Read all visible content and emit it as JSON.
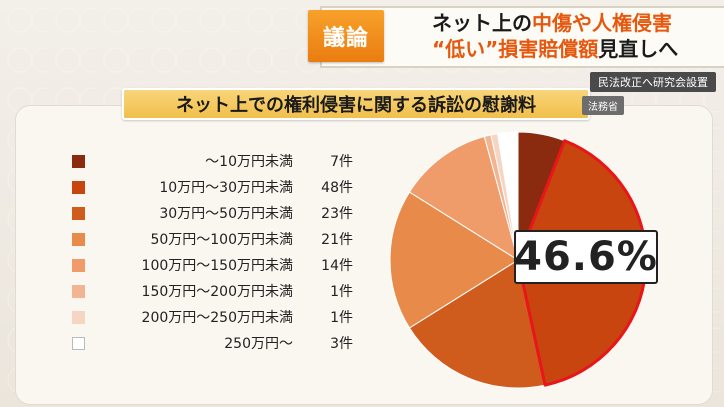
{
  "headline": {
    "badge": "議論",
    "line1_plain": "ネット上の",
    "line1_hl": "中傷や人権侵害",
    "line2_hl": "“低い”損害賠償額",
    "line2_plain": "見直しへ"
  },
  "sub_caption": "民法改正へ研究会設置",
  "chart": {
    "title": "ネット上での権利侵害に関する訴訟の慰謝料",
    "source": "法務省",
    "highlight_label": "46.6%"
  },
  "chart_data": {
    "type": "pie",
    "title": "ネット上での権利侵害に関する訴訟の慰謝料",
    "categories": [
      "〜10万円未満",
      "10万円〜30万円未満",
      "30万円〜50万円未満",
      "50万円〜100万円未満",
      "100万円〜150万円未満",
      "150万円〜200万円未満",
      "200万円〜250万円未満",
      "250万円〜"
    ],
    "counts": [
      "7件",
      "48件",
      "23件",
      "21件",
      "14件",
      "1件",
      "1件",
      "3件"
    ],
    "values": [
      7,
      48,
      23,
      21,
      14,
      1,
      1,
      3
    ],
    "colors": [
      "#8a2a0e",
      "#c8450f",
      "#cf5c1c",
      "#e78a4a",
      "#ef9c6a",
      "#f2b592",
      "#f6d5c3",
      "#ffffff"
    ],
    "highlighted_category": "10万円〜30万円未満",
    "highlight_color": "#e8151a",
    "annotation": "46.6%"
  }
}
